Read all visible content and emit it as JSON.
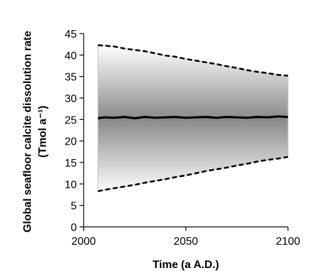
{
  "chart_data": {
    "type": "area",
    "title": "",
    "xlabel": "Time (a A.D.)",
    "ylabel_line1": "Global seafloor calcite dissolution rate",
    "ylabel_line2": "(Tmol a⁻¹)",
    "xlim": [
      2000,
      2100
    ],
    "ylim": [
      0,
      45
    ],
    "xticks": [
      2000,
      2050,
      2100
    ],
    "yticks": [
      0,
      5,
      10,
      15,
      20,
      25,
      30,
      35,
      40,
      45
    ],
    "xtick_labels": [
      "2000",
      "2050",
      "2100"
    ],
    "ytick_labels": [
      "0",
      "5",
      "10",
      "15",
      "20",
      "25",
      "30",
      "35",
      "40",
      "45"
    ],
    "grid": false,
    "legend": "none",
    "series": [
      {
        "style": "solid",
        "x": [
          2007,
          2010,
          2015,
          2020,
          2025,
          2030,
          2035,
          2040,
          2045,
          2050,
          2055,
          2060,
          2065,
          2070,
          2075,
          2080,
          2085,
          2090,
          2095,
          2100
        ],
        "y": [
          25.3,
          25.5,
          25.4,
          25.6,
          25.3,
          25.6,
          25.4,
          25.5,
          25.6,
          25.4,
          25.5,
          25.6,
          25.4,
          25.6,
          25.5,
          25.4,
          25.6,
          25.5,
          25.7,
          25.6
        ]
      },
      {
        "style": "dashed",
        "x": [
          2007,
          2010,
          2015,
          2020,
          2025,
          2030,
          2035,
          2040,
          2045,
          2050,
          2055,
          2060,
          2065,
          2070,
          2075,
          2080,
          2085,
          2090,
          2095,
          2100
        ],
        "y": [
          42.3,
          42.2,
          42.0,
          41.5,
          41.2,
          40.9,
          40.4,
          39.9,
          39.6,
          39.1,
          38.7,
          38.3,
          37.9,
          37.4,
          37.0,
          36.5,
          36.1,
          35.8,
          35.4,
          35.2
        ]
      },
      {
        "style": "dashed",
        "x": [
          2007,
          2010,
          2015,
          2020,
          2025,
          2030,
          2035,
          2040,
          2045,
          2050,
          2055,
          2060,
          2065,
          2070,
          2075,
          2080,
          2085,
          2090,
          2095,
          2100
        ],
        "y": [
          8.3,
          8.6,
          9.0,
          9.4,
          9.8,
          10.3,
          10.7,
          11.1,
          11.6,
          12.0,
          12.5,
          13.0,
          13.4,
          13.8,
          14.3,
          14.7,
          15.2,
          15.6,
          15.9,
          16.3
        ]
      }
    ],
    "band": {
      "x_start": 2007,
      "x_end": 2100,
      "upper_series": 1,
      "lower_series": 2
    },
    "colors": {
      "axis": "#000000",
      "line": "#000000",
      "band_center": "#8a8a8a",
      "band_edge": "#ffffff",
      "band_outline": "#bfbfbf"
    }
  }
}
